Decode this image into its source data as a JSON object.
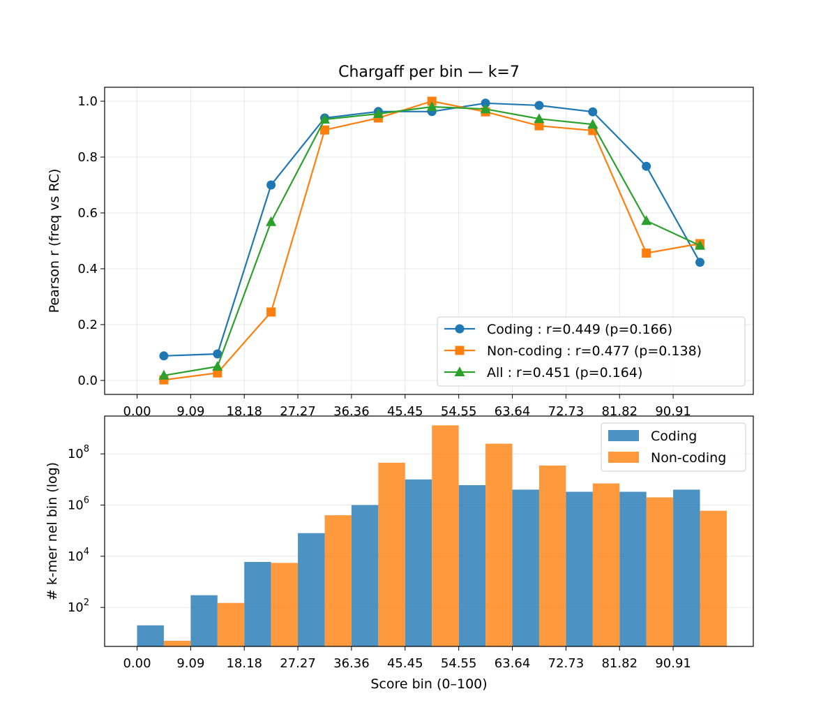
{
  "chart_data": [
    {
      "type": "line",
      "title": "Chargaff per bin — k=7",
      "xlabel": "",
      "ylabel": "Pearson r (freq vs RC)",
      "x_tick_labels": [
        "0.00",
        "9.09",
        "18.18",
        "27.27",
        "36.36",
        "45.45",
        "54.55",
        "63.64",
        "72.73",
        "81.82",
        "90.91"
      ],
      "x_tick_values": [
        0,
        9.09,
        18.18,
        27.27,
        36.36,
        45.45,
        54.55,
        63.64,
        72.73,
        81.82,
        90.91
      ],
      "y_tick_labels": [
        "0.0",
        "0.2",
        "0.4",
        "0.6",
        "0.8",
        "1.0"
      ],
      "y_tick_values": [
        0,
        0.2,
        0.4,
        0.6,
        0.8,
        1.0
      ],
      "xlim": [
        -5.5,
        104.5
      ],
      "ylim": [
        -0.05,
        1.05
      ],
      "grid": true,
      "legend_position": "lower-right",
      "x": [
        4.545,
        13.636,
        22.727,
        31.818,
        40.909,
        50.0,
        59.091,
        68.182,
        77.273,
        86.364,
        95.455
      ],
      "series": [
        {
          "name": "Coding : r=0.449 (p=0.166)",
          "color": "#1f77b4",
          "marker": "circle",
          "values": [
            0.088,
            0.095,
            0.7,
            0.94,
            0.963,
            0.963,
            0.993,
            0.985,
            0.962,
            0.767,
            0.423
          ]
        },
        {
          "name": "Non-coding : r=0.477 (p=0.138)",
          "color": "#ff7f0e",
          "marker": "square",
          "values": [
            0.002,
            0.027,
            0.245,
            0.897,
            0.94,
            1.0,
            0.962,
            0.912,
            0.895,
            0.456,
            0.49
          ]
        },
        {
          "name": "All : r=0.451 (p=0.164)",
          "color": "#2ca02c",
          "marker": "triangle",
          "values": [
            0.018,
            0.05,
            0.568,
            0.935,
            0.955,
            0.98,
            0.972,
            0.937,
            0.917,
            0.572,
            0.483
          ]
        }
      ]
    },
    {
      "type": "bar",
      "title": "",
      "xlabel": "Score bin (0–100)",
      "ylabel": "# k-mer nel bin (log)",
      "y_scale": "log",
      "x_tick_labels": [
        "0.00",
        "9.09",
        "18.18",
        "27.27",
        "36.36",
        "45.45",
        "54.55",
        "63.64",
        "72.73",
        "81.82",
        "90.91"
      ],
      "x_tick_values": [
        0,
        9.09,
        18.18,
        27.27,
        36.36,
        45.45,
        54.55,
        63.64,
        72.73,
        81.82,
        90.91
      ],
      "y_tick_labels": [
        {
          "base": "10",
          "exp": "2"
        },
        {
          "base": "10",
          "exp": "4"
        },
        {
          "base": "10",
          "exp": "6"
        },
        {
          "base": "10",
          "exp": "8"
        }
      ],
      "y_tick_values": [
        100,
        10000,
        1000000,
        100000000
      ],
      "xlim": [
        -5.5,
        104.5
      ],
      "ylim": [
        3,
        3000000000
      ],
      "grid": true,
      "legend_position": "upper-right",
      "bar_width": 4.545,
      "series": [
        {
          "name": "Coding",
          "color": "#1f77b4",
          "opacity": 0.8,
          "x": [
            0,
            9.09,
            18.18,
            27.27,
            36.36,
            45.45,
            54.55,
            63.64,
            72.73,
            81.82,
            90.91
          ],
          "values": [
            20,
            300,
            6000,
            80000,
            1000000,
            10000000,
            6000000,
            4000000,
            3300000,
            3300000,
            4000000
          ]
        },
        {
          "name": "Non-coding",
          "color": "#ff7f0e",
          "opacity": 0.8,
          "x": [
            4.545,
            13.636,
            22.727,
            31.818,
            40.909,
            50.0,
            59.091,
            68.182,
            77.273,
            86.364,
            95.455
          ],
          "values": [
            5,
            150,
            5500,
            400000,
            45000000,
            1300000000,
            250000000,
            35000000,
            7000000,
            2000000,
            600000
          ]
        }
      ]
    }
  ]
}
